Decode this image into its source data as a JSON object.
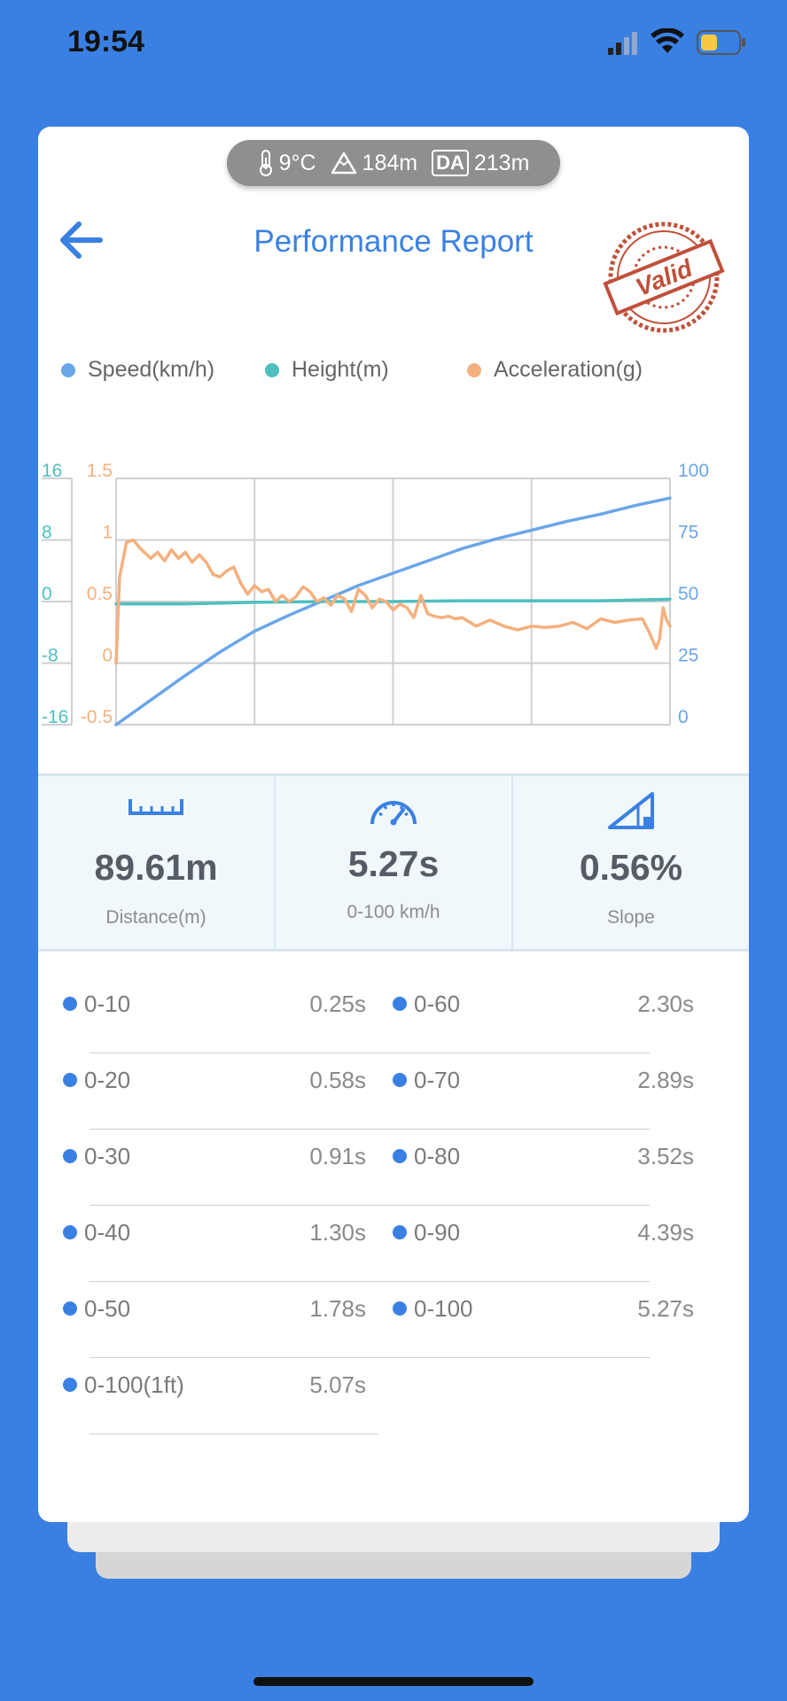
{
  "status_bar": {
    "time": "19:54"
  },
  "conditions": {
    "temperature": "9°C",
    "altitude": "184m",
    "da_label": "DA",
    "density_altitude": "213m"
  },
  "header": {
    "title": "Performance Report",
    "stamp_text": "Valid"
  },
  "colors": {
    "speed": "#6aa6e8",
    "height": "#4fbfc0",
    "acceleration": "#f4b07e",
    "accent": "#3a80e2"
  },
  "chart_data": {
    "type": "line",
    "legend": [
      "Speed(km/h)",
      "Height(m)",
      "Acceleration(g)"
    ],
    "x_range": [
      0,
      8
    ],
    "axes": {
      "height_left": {
        "ticks": [
          "16",
          "8",
          "0",
          "-8",
          "-16"
        ],
        "range": [
          -16,
          16
        ]
      },
      "accel_left": {
        "ticks": [
          "1.5",
          "1",
          "0.5",
          "0",
          "-0.5"
        ],
        "range": [
          -0.5,
          1.5
        ]
      },
      "speed_right": {
        "ticks": [
          "100",
          "75",
          "50",
          "25",
          "0"
        ],
        "range": [
          0,
          100
        ]
      }
    },
    "series": [
      {
        "name": "Speed(km/h)",
        "axis": "speed_right",
        "x": [
          0,
          0.5,
          1,
          1.5,
          2,
          2.5,
          3,
          3.5,
          4,
          4.5,
          5,
          5.5,
          6,
          6.5,
          7,
          7.5,
          8
        ],
        "values": [
          0,
          10,
          20,
          29.5,
          38,
          44.5,
          50.5,
          56.5,
          61.5,
          66.5,
          71.5,
          75.5,
          79,
          82.5,
          85.5,
          89,
          92
        ]
      },
      {
        "name": "Height(m)",
        "axis": "height_left",
        "x": [
          0,
          1,
          2,
          3,
          4,
          5,
          6,
          7,
          8
        ],
        "values": [
          -0.3,
          -0.3,
          -0.1,
          0,
          0,
          0.1,
          0.1,
          0.1,
          0.3
        ]
      },
      {
        "name": "Acceleration(g)",
        "axis": "accel_left",
        "x": [
          0,
          0.05,
          0.15,
          0.25,
          0.35,
          0.5,
          0.6,
          0.7,
          0.8,
          0.9,
          1.0,
          1.1,
          1.2,
          1.3,
          1.4,
          1.5,
          1.6,
          1.7,
          1.8,
          1.9,
          2.0,
          2.1,
          2.2,
          2.3,
          2.4,
          2.5,
          2.6,
          2.7,
          2.8,
          2.9,
          3.0,
          3.1,
          3.2,
          3.3,
          3.4,
          3.5,
          3.6,
          3.7,
          3.8,
          3.9,
          4.0,
          4.1,
          4.2,
          4.3,
          4.4,
          4.5,
          4.6,
          4.7,
          4.8,
          4.9,
          5.0,
          5.2,
          5.4,
          5.6,
          5.8,
          6.0,
          6.2,
          6.4,
          6.6,
          6.8,
          7.0,
          7.2,
          7.4,
          7.6,
          7.7,
          7.8,
          7.85,
          7.9,
          7.95,
          8.0
        ],
        "values": [
          0,
          0.7,
          0.98,
          1.0,
          0.93,
          0.85,
          0.9,
          0.83,
          0.92,
          0.85,
          0.9,
          0.82,
          0.88,
          0.82,
          0.72,
          0.7,
          0.75,
          0.78,
          0.65,
          0.56,
          0.63,
          0.58,
          0.6,
          0.5,
          0.55,
          0.5,
          0.54,
          0.62,
          0.58,
          0.5,
          0.53,
          0.47,
          0.55,
          0.52,
          0.42,
          0.6,
          0.55,
          0.45,
          0.52,
          0.5,
          0.43,
          0.48,
          0.45,
          0.37,
          0.55,
          0.4,
          0.38,
          0.37,
          0.38,
          0.36,
          0.37,
          0.3,
          0.35,
          0.3,
          0.27,
          0.3,
          0.29,
          0.3,
          0.33,
          0.28,
          0.36,
          0.33,
          0.35,
          0.36,
          0.25,
          0.12,
          0.2,
          0.45,
          0.35,
          0.3
        ]
      }
    ],
    "grid": true
  },
  "stats": [
    {
      "value": "89.61m",
      "label": "Distance(m)",
      "icon": "ruler-icon"
    },
    {
      "value": "5.27s",
      "label": "0-100 km/h",
      "icon": "speedometer-icon"
    },
    {
      "value": "0.56%",
      "label": "Slope",
      "icon": "slope-icon"
    }
  ],
  "splits": [
    {
      "left": {
        "range": "0-10",
        "time": "0.25s"
      },
      "right": {
        "range": "0-60",
        "time": "2.30s"
      }
    },
    {
      "left": {
        "range": "0-20",
        "time": "0.58s"
      },
      "right": {
        "range": "0-70",
        "time": "2.89s"
      }
    },
    {
      "left": {
        "range": "0-30",
        "time": "0.91s"
      },
      "right": {
        "range": "0-80",
        "time": "3.52s"
      }
    },
    {
      "left": {
        "range": "0-40",
        "time": "1.30s"
      },
      "right": {
        "range": "0-90",
        "time": "4.39s"
      }
    },
    {
      "left": {
        "range": "0-50",
        "time": "1.78s"
      },
      "right": {
        "range": "0-100",
        "time": "5.27s"
      }
    },
    {
      "left": {
        "range": "0-100(1ft)",
        "time": "5.07s"
      }
    }
  ]
}
